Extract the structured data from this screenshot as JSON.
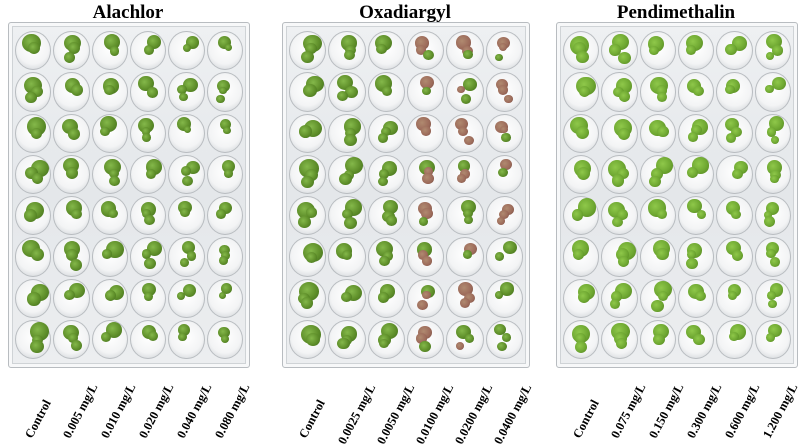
{
  "panels": [
    {
      "title": "Alachlor",
      "concentrations": [
        "Control",
        "0.005 mg/L",
        "0.010 mg/L",
        "0.020 mg/L",
        "0.040 mg/L",
        "0.080 mg/L"
      ]
    },
    {
      "title": "Oxadiargyl",
      "concentrations": [
        "Control",
        "0.0025 mg/L",
        "0.0050 mg/L",
        "0.0100 mg/L",
        "0.0200 mg/L",
        "0.0400 mg/L"
      ]
    },
    {
      "title": "Pendimethalin",
      "concentrations": [
        "Control",
        "0.075 mg/L",
        "0.150 mg/L",
        "0.300 mg/L",
        "0.600 mg/L",
        "1.200 mg/L"
      ]
    }
  ],
  "plate": {
    "rows": 8,
    "columns": 6
  },
  "colors": {
    "frond_green": "#5f8f2a",
    "frond_dark": "#3f6b1c",
    "frond_necrotic": "#9c6a5a",
    "pendimethalin_green": "#6fa832"
  }
}
